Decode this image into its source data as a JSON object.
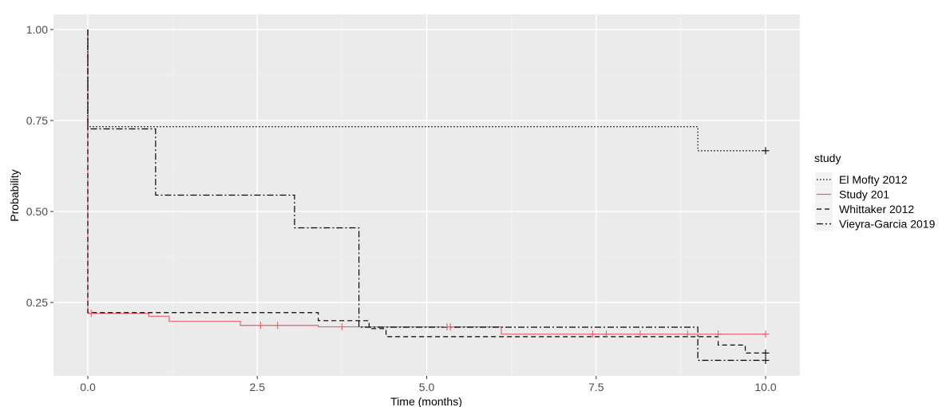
{
  "chart_data": {
    "type": "line",
    "step": true,
    "xlabel": "Time (months)",
    "ylabel": "Probability",
    "xlim": [
      -0.5,
      10.5
    ],
    "ylim": [
      0.06,
      1.02
    ],
    "x_ticks": [
      0.0,
      2.5,
      5.0,
      7.5,
      10.0
    ],
    "x_tick_labels": [
      "0.0",
      "2.5",
      "5.0",
      "7.5",
      "10.0"
    ],
    "y_ticks": [
      0.25,
      0.5,
      0.75,
      1.0
    ],
    "y_tick_labels": [
      "0.25",
      "0.50",
      "0.75",
      "1.00"
    ],
    "grid": true,
    "panel_background": "#ebebeb",
    "legend": {
      "title": "study",
      "position": "right"
    },
    "series": [
      {
        "name": "El Mofty 2012",
        "color": "#000000",
        "linestyle": "dotted",
        "x": [
          0,
          0.0,
          9.0,
          10.0
        ],
        "y": [
          1.0,
          0.733,
          0.667,
          0.667
        ],
        "censor_x": [
          10.0
        ],
        "censor_y": [
          0.667
        ]
      },
      {
        "name": "Study 201",
        "color": "#e8606a",
        "linestyle": "solid",
        "x": [
          0,
          0.0,
          0.9,
          1.2,
          2.25,
          3.4,
          6.1,
          10.0
        ],
        "y": [
          1.0,
          0.22,
          0.212,
          0.198,
          0.187,
          0.183,
          0.163,
          0.163
        ],
        "censor_x": [
          0.05,
          2.55,
          2.8,
          3.75,
          5.3,
          5.35,
          7.45,
          7.65,
          8.15,
          8.85,
          9.3,
          10.0
        ],
        "censor_y": [
          0.22,
          0.187,
          0.187,
          0.183,
          0.183,
          0.183,
          0.163,
          0.163,
          0.163,
          0.163,
          0.163,
          0.163
        ]
      },
      {
        "name": "Whittaker 2012",
        "color": "#000000",
        "linestyle": "dashed",
        "x": [
          0,
          0.0,
          3.4,
          4.15,
          4.4,
          9.0,
          9.3,
          9.7,
          10.0
        ],
        "y": [
          1.0,
          0.222,
          0.2,
          0.178,
          0.156,
          0.156,
          0.133,
          0.111,
          0.111
        ],
        "censor_x": [
          10.0
        ],
        "censor_y": [
          0.111
        ]
      },
      {
        "name": "Vieyra-Garcia 2019",
        "color": "#000000",
        "linestyle": "dashdot",
        "x": [
          0,
          0.0,
          1.0,
          3.05,
          4.0,
          9.0,
          10.0
        ],
        "y": [
          1.0,
          0.727,
          0.545,
          0.455,
          0.182,
          0.091,
          0.091
        ],
        "censor_x": [
          10.0
        ],
        "censor_y": [
          0.091
        ]
      }
    ]
  }
}
